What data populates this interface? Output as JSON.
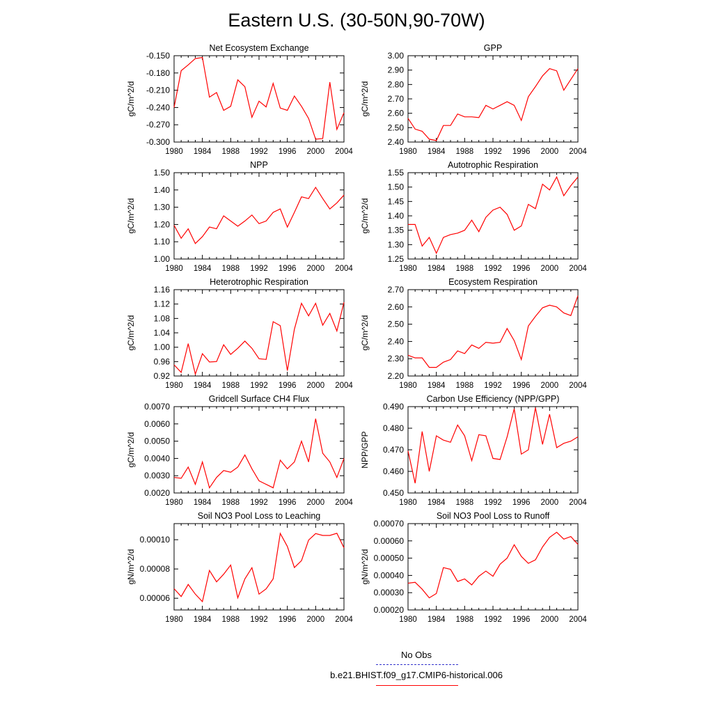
{
  "title": "Eastern U.S. (30-50N,90-70W)",
  "legend": [
    {
      "label": "No Obs",
      "color": "#3333cc",
      "dash": true
    },
    {
      "label": "b.e21.BHIST.f09_g17.CMIP6-historical.006",
      "color": "#ff0000",
      "dash": false
    }
  ],
  "chart_data": [
    {
      "type": "line",
      "title": "Net Ecosystem Exchange",
      "ylabel": "gC/m^2/d",
      "x": [
        1980,
        1981,
        1982,
        1983,
        1984,
        1985,
        1986,
        1987,
        1988,
        1989,
        1990,
        1991,
        1992,
        1993,
        1994,
        1995,
        1996,
        1997,
        1998,
        1999,
        2000,
        2001,
        2002,
        2003,
        2004
      ],
      "xticks": [
        "1980",
        "1984",
        "1988",
        "1992",
        "1996",
        "2000",
        "2004"
      ],
      "ylim": [
        -0.3,
        -0.15
      ],
      "yticks": [
        "-0.150",
        "-0.180",
        "-0.210",
        "-0.240",
        "-0.270",
        "-0.300"
      ],
      "series": [
        {
          "color": "#ff0000",
          "values": [
            -0.24,
            -0.176,
            -0.166,
            -0.155,
            -0.153,
            -0.222,
            -0.214,
            -0.245,
            -0.238,
            -0.192,
            -0.204,
            -0.257,
            -0.229,
            -0.239,
            -0.198,
            -0.241,
            -0.245,
            -0.22,
            -0.238,
            -0.259,
            -0.295,
            -0.294,
            -0.196,
            -0.278,
            -0.249
          ]
        }
      ]
    },
    {
      "type": "line",
      "title": "GPP",
      "ylabel": "gC/m^2/d",
      "x": [
        1980,
        1981,
        1982,
        1983,
        1984,
        1985,
        1986,
        1987,
        1988,
        1989,
        1990,
        1991,
        1992,
        1993,
        1994,
        1995,
        1996,
        1997,
        1998,
        1999,
        2000,
        2001,
        2002,
        2003,
        2004
      ],
      "xticks": [
        "1980",
        "1984",
        "1988",
        "1992",
        "1996",
        "2000",
        "2004"
      ],
      "ylim": [
        2.4,
        3.0
      ],
      "yticks": [
        "3.00",
        "2.90",
        "2.80",
        "2.70",
        "2.60",
        "2.50",
        "2.40"
      ],
      "series": [
        {
          "color": "#ff0000",
          "values": [
            2.565,
            2.49,
            2.475,
            2.42,
            2.41,
            2.515,
            2.515,
            2.595,
            2.575,
            2.575,
            2.57,
            2.655,
            2.63,
            2.655,
            2.68,
            2.655,
            2.55,
            2.715,
            2.785,
            2.86,
            2.91,
            2.895,
            2.76,
            2.835,
            2.91
          ]
        }
      ]
    },
    {
      "type": "line",
      "title": "NPP",
      "ylabel": "gC/m^2/d",
      "x": [
        1980,
        1981,
        1982,
        1983,
        1984,
        1985,
        1986,
        1987,
        1988,
        1989,
        1990,
        1991,
        1992,
        1993,
        1994,
        1995,
        1996,
        1997,
        1998,
        1999,
        2000,
        2001,
        2002,
        2003,
        2004
      ],
      "xticks": [
        "1980",
        "1984",
        "1988",
        "1992",
        "1996",
        "2000",
        "2004"
      ],
      "ylim": [
        1.0,
        1.5
      ],
      "yticks": [
        "1.50",
        "1.40",
        "1.30",
        "1.20",
        "1.10",
        "1.00"
      ],
      "series": [
        {
          "color": "#ff0000",
          "values": [
            1.195,
            1.12,
            1.175,
            1.09,
            1.13,
            1.185,
            1.175,
            1.25,
            1.22,
            1.19,
            1.22,
            1.255,
            1.205,
            1.22,
            1.27,
            1.29,
            1.185,
            1.27,
            1.36,
            1.35,
            1.415,
            1.35,
            1.29,
            1.325,
            1.37
          ]
        }
      ]
    },
    {
      "type": "line",
      "title": "Autotrophic Respiration",
      "ylabel": "gC/m^2/d",
      "x": [
        1980,
        1981,
        1982,
        1983,
        1984,
        1985,
        1986,
        1987,
        1988,
        1989,
        1990,
        1991,
        1992,
        1993,
        1994,
        1995,
        1996,
        1997,
        1998,
        1999,
        2000,
        2001,
        2002,
        2003,
        2004
      ],
      "xticks": [
        "1980",
        "1984",
        "1988",
        "1992",
        "1996",
        "2000",
        "2004"
      ],
      "ylim": [
        1.25,
        1.55
      ],
      "yticks": [
        "1.55",
        "1.50",
        "1.45",
        "1.40",
        "1.35",
        "1.30",
        "1.25"
      ],
      "series": [
        {
          "color": "#ff0000",
          "values": [
            1.37,
            1.37,
            1.295,
            1.325,
            1.27,
            1.325,
            1.335,
            1.34,
            1.35,
            1.385,
            1.345,
            1.395,
            1.42,
            1.43,
            1.405,
            1.35,
            1.365,
            1.44,
            1.425,
            1.51,
            1.49,
            1.535,
            1.47,
            1.505,
            1.535
          ]
        }
      ]
    },
    {
      "type": "line",
      "title": "Heterotrophic Respiration",
      "ylabel": "gC/m^2/d",
      "x": [
        1980,
        1981,
        1982,
        1983,
        1984,
        1985,
        1986,
        1987,
        1988,
        1989,
        1990,
        1991,
        1992,
        1993,
        1994,
        1995,
        1996,
        1997,
        1998,
        1999,
        2000,
        2001,
        2002,
        2003,
        2004
      ],
      "xticks": [
        "1980",
        "1984",
        "1988",
        "1992",
        "1996",
        "2000",
        "2004"
      ],
      "ylim": [
        0.92,
        1.16
      ],
      "yticks": [
        "1.16",
        "1.12",
        "1.08",
        "1.04",
        "1.00",
        "0.96",
        "0.92"
      ],
      "series": [
        {
          "color": "#ff0000",
          "values": [
            0.951,
            0.93,
            1.01,
            0.925,
            0.982,
            0.959,
            0.96,
            1.007,
            0.98,
            0.997,
            1.017,
            0.997,
            0.968,
            0.966,
            1.071,
            1.06,
            0.935,
            1.05,
            1.122,
            1.087,
            1.122,
            1.061,
            1.094,
            1.045,
            1.125
          ]
        }
      ]
    },
    {
      "type": "line",
      "title": "Ecosystem Respiration",
      "ylabel": "gC/m^2/d",
      "x": [
        1980,
        1981,
        1982,
        1983,
        1984,
        1985,
        1986,
        1987,
        1988,
        1989,
        1990,
        1991,
        1992,
        1993,
        1994,
        1995,
        1996,
        1997,
        1998,
        1999,
        2000,
        2001,
        2002,
        2003,
        2004
      ],
      "xticks": [
        "1980",
        "1984",
        "1988",
        "1992",
        "1996",
        "2000",
        "2004"
      ],
      "ylim": [
        2.2,
        2.7
      ],
      "yticks": [
        "2.70",
        "2.60",
        "2.50",
        "2.40",
        "2.30",
        "2.20"
      ],
      "series": [
        {
          "color": "#ff0000",
          "values": [
            2.32,
            2.305,
            2.305,
            2.25,
            2.25,
            2.28,
            2.295,
            2.345,
            2.33,
            2.38,
            2.36,
            2.395,
            2.39,
            2.395,
            2.475,
            2.405,
            2.295,
            2.49,
            2.545,
            2.595,
            2.61,
            2.6,
            2.565,
            2.55,
            2.665
          ]
        }
      ]
    },
    {
      "type": "line",
      "title": "Gridcell Surface CH4 Flux",
      "ylabel": "gC/m^2/d",
      "x": [
        1980,
        1981,
        1982,
        1983,
        1984,
        1985,
        1986,
        1987,
        1988,
        1989,
        1990,
        1991,
        1992,
        1993,
        1994,
        1995,
        1996,
        1997,
        1998,
        1999,
        2000,
        2001,
        2002,
        2003,
        2004
      ],
      "xticks": [
        "1980",
        "1984",
        "1988",
        "1992",
        "1996",
        "2000",
        "2004"
      ],
      "ylim": [
        0.002,
        0.007
      ],
      "yticks": [
        "0.0070",
        "0.0060",
        "0.0050",
        "0.0040",
        "0.0030",
        "0.0020"
      ],
      "series": [
        {
          "color": "#ff0000",
          "values": [
            0.0029,
            0.00285,
            0.0035,
            0.0025,
            0.0038,
            0.0023,
            0.0029,
            0.0033,
            0.0032,
            0.0035,
            0.0042,
            0.0034,
            0.0027,
            0.0025,
            0.0023,
            0.0039,
            0.0034,
            0.0038,
            0.005,
            0.0038,
            0.0063,
            0.0043,
            0.0038,
            0.0029,
            0.004
          ]
        }
      ]
    },
    {
      "type": "line",
      "title": "Carbon Use Efficiency (NPP/GPP)",
      "ylabel": "NPP/GPP",
      "x": [
        1980,
        1981,
        1982,
        1983,
        1984,
        1985,
        1986,
        1987,
        1988,
        1989,
        1990,
        1991,
        1992,
        1993,
        1994,
        1995,
        1996,
        1997,
        1998,
        1999,
        2000,
        2001,
        2002,
        2003,
        2004
      ],
      "xticks": [
        "1980",
        "1984",
        "1988",
        "1992",
        "1996",
        "2000",
        "2004"
      ],
      "ylim": [
        0.45,
        0.49
      ],
      "yticks": [
        "0.490",
        "0.480",
        "0.470",
        "0.460",
        "0.450"
      ],
      "series": [
        {
          "color": "#ff0000",
          "values": [
            0.4695,
            0.4545,
            0.4785,
            0.46,
            0.4765,
            0.4745,
            0.4735,
            0.4815,
            0.4765,
            0.465,
            0.477,
            0.4765,
            0.466,
            0.4655,
            0.476,
            0.489,
            0.468,
            0.47,
            0.4895,
            0.4725,
            0.4865,
            0.471,
            0.473,
            0.474,
            0.476
          ]
        }
      ]
    },
    {
      "type": "line",
      "title": "Soil NO3 Pool Loss to Leaching",
      "ylabel": "gN/m^2/d",
      "x": [
        1980,
        1981,
        1982,
        1983,
        1984,
        1985,
        1986,
        1987,
        1988,
        1989,
        1990,
        1991,
        1992,
        1993,
        1994,
        1995,
        1996,
        1997,
        1998,
        1999,
        2000,
        2001,
        2002,
        2003,
        2004
      ],
      "xticks": [
        "1980",
        "1984",
        "1988",
        "1992",
        "1996",
        "2000",
        "2004"
      ],
      "ylim": [
        5.2e-05,
        0.000111
      ],
      "yticks": [
        "0.00010",
        "0.00008",
        "0.00006"
      ],
      "ytick_values": [
        0.0001,
        8e-05,
        6e-05
      ],
      "series": [
        {
          "color": "#ff0000",
          "values": [
            6.65e-05,
            6.12e-05,
            6.94e-05,
            6.28e-05,
            5.77e-05,
            7.9e-05,
            7.12e-05,
            7.64e-05,
            8.27e-05,
            6.03e-05,
            7.32e-05,
            8.09e-05,
            6.28e-05,
            6.64e-05,
            7.32e-05,
            0.0001043,
            9.54e-05,
            8.1e-05,
            8.57e-05,
            9.97e-05,
            0.0001042,
            0.0001029,
            0.0001029,
            0.0001044,
            9.45e-05
          ]
        }
      ]
    },
    {
      "type": "line",
      "title": "Soil NO3 Pool Loss to Runoff",
      "ylabel": "gN/m^2/d",
      "x": [
        1980,
        1981,
        1982,
        1983,
        1984,
        1985,
        1986,
        1987,
        1988,
        1989,
        1990,
        1991,
        1992,
        1993,
        1994,
        1995,
        1996,
        1997,
        1998,
        1999,
        2000,
        2001,
        2002,
        2003,
        2004
      ],
      "xticks": [
        "1980",
        "1984",
        "1988",
        "1992",
        "1996",
        "2000",
        "2004"
      ],
      "ylim": [
        0.0002,
        0.0007
      ],
      "yticks": [
        "0.00070",
        "0.00060",
        "0.00050",
        "0.00040",
        "0.00030",
        "0.00020"
      ],
      "series": [
        {
          "color": "#ff0000",
          "values": [
            0.000355,
            0.00036,
            0.00032,
            0.00027,
            0.000295,
            0.000445,
            0.000435,
            0.000365,
            0.00038,
            0.000345,
            0.000395,
            0.000425,
            0.000395,
            0.000465,
            0.0005,
            0.000578,
            0.00051,
            0.00047,
            0.00049,
            0.000565,
            0.00062,
            0.00065,
            0.00061,
            0.000625,
            0.00058
          ]
        }
      ]
    }
  ]
}
